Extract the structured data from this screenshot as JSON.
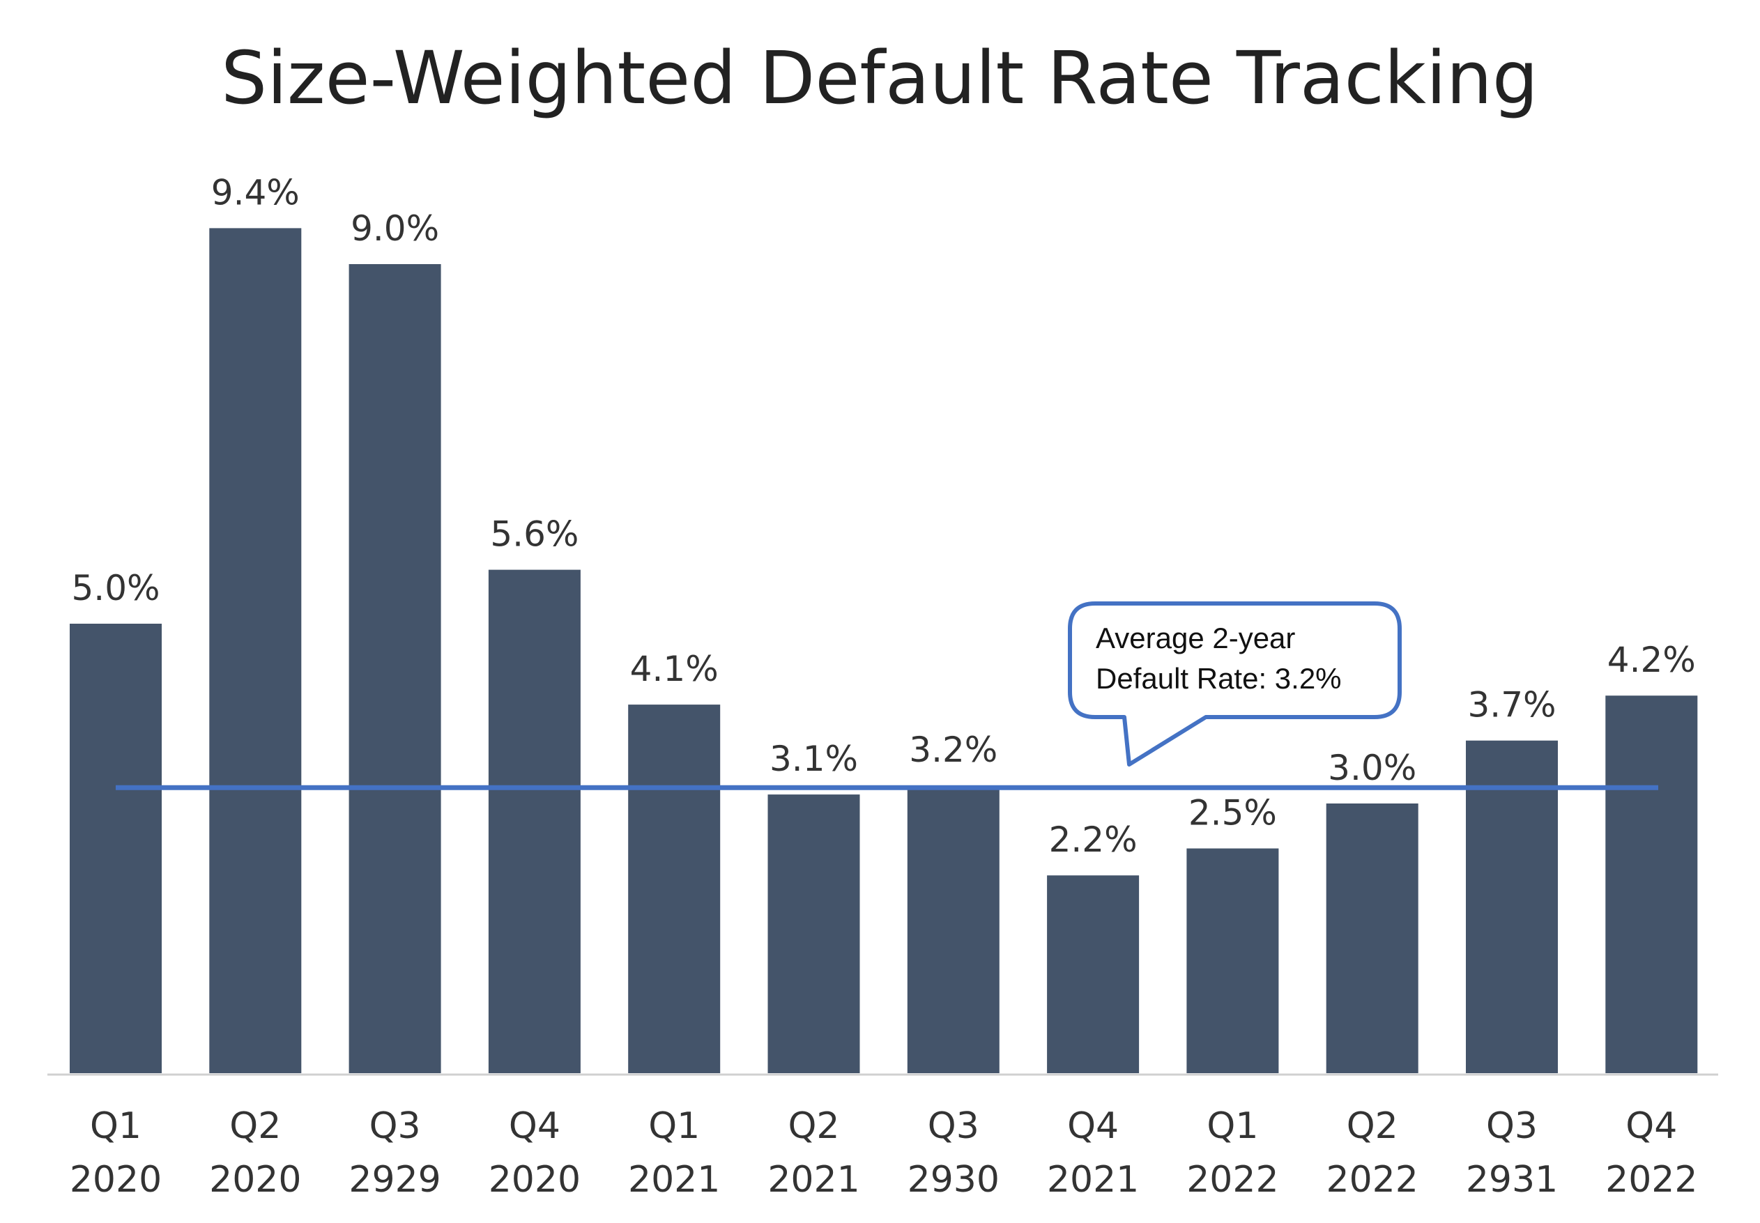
{
  "chart_data": {
    "type": "bar",
    "title": "Size-Weighted Default Rate Tracking",
    "categories": [
      [
        "Q1",
        "2020"
      ],
      [
        "Q2",
        "2020"
      ],
      [
        "Q3",
        "2929"
      ],
      [
        "Q4",
        "2020"
      ],
      [
        "Q1",
        "2021"
      ],
      [
        "Q2",
        "2021"
      ],
      [
        "Q3",
        "2930"
      ],
      [
        "Q4",
        "2021"
      ],
      [
        "Q1",
        "2022"
      ],
      [
        "Q2",
        "2022"
      ],
      [
        "Q3",
        "2931"
      ],
      [
        "Q4",
        "2022"
      ]
    ],
    "values": [
      5.0,
      9.4,
      9.0,
      5.6,
      4.1,
      3.1,
      3.2,
      2.2,
      2.5,
      3.0,
      3.7,
      4.2
    ],
    "value_labels": [
      "5.0%",
      "9.4%",
      "9.0%",
      "5.6%",
      "4.1%",
      "3.1%",
      "3.2%",
      "2.2%",
      "2.5%",
      "3.0%",
      "3.7%",
      "4.2%"
    ],
    "ylim": [
      0,
      10
    ],
    "average_line": {
      "value": 3.2,
      "callout": [
        "Average 2-year",
        "Default Rate: 3.2%"
      ]
    },
    "grid": false,
    "legend": "none",
    "colors": {
      "bar": "#44546a",
      "average_line": "#4472c4",
      "axis": "#d0d0d0"
    }
  }
}
